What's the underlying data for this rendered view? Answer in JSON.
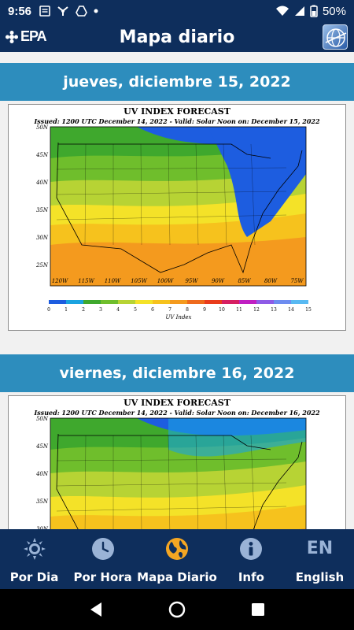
{
  "status_bar": {
    "time": "9:56",
    "battery": "50%"
  },
  "app_bar": {
    "logo_text": "EPA",
    "title": "Mapa diario"
  },
  "days": [
    {
      "date_label": "jueves, diciembre 15, 2022",
      "map_title": "UV INDEX FORECAST",
      "map_issued": "Issued: 1200 UTC December 14, 2022  -  Valid: Solar Noon on: December 15, 2022"
    },
    {
      "date_label": "viernes, diciembre 16, 2022",
      "map_title": "UV INDEX FORECAST",
      "map_issued": "Issued: 1200 UTC December 14, 2022  -  Valid: Solar Noon on: December 16, 2022"
    }
  ],
  "map_axes": {
    "lat_labels": [
      "50N",
      "45N",
      "40N",
      "35N",
      "30N",
      "25N"
    ],
    "lon_labels": [
      "120W",
      "115W",
      "110W",
      "105W",
      "100W",
      "95W",
      "90W",
      "85W",
      "80W",
      "75W"
    ],
    "scale_labels": [
      "0",
      "1",
      "2",
      "3",
      "4",
      "5",
      "6",
      "7",
      "8",
      "9",
      "10",
      "11",
      "12",
      "13",
      "14",
      "15"
    ],
    "scale_title": "UV Index",
    "scale_colors": [
      "#1d5de0",
      "#1aa3e0",
      "#3fa82d",
      "#6fbe2c",
      "#b7d334",
      "#f4e228",
      "#f6c21d",
      "#f49a1e",
      "#ee6a1d",
      "#e93c1c",
      "#d61f62",
      "#c01fc2",
      "#8e5be6",
      "#6d8cf0",
      "#58b9f2"
    ]
  },
  "bottom_nav": {
    "items": [
      {
        "label": "Por Dia",
        "icon": "sun-icon"
      },
      {
        "label": "Por Hora",
        "icon": "clock-icon"
      },
      {
        "label": "Mapa Diario",
        "icon": "globe-icon"
      },
      {
        "label": "Info",
        "icon": "info-icon"
      },
      {
        "label": "English",
        "icon": "en-icon",
        "icon_text": "EN"
      }
    ]
  }
}
